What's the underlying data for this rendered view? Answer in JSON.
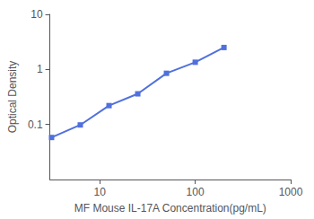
{
  "chart_data": {
    "type": "line",
    "xlabel": "MF Mouse IL-17A Concentration(pg/mL)",
    "ylabel": "Optical Density",
    "x": [
      3.125,
      6.25,
      12.5,
      25,
      50,
      100,
      200
    ],
    "values": [
      0.058,
      0.098,
      0.22,
      0.36,
      0.85,
      1.35,
      2.5
    ],
    "xlim": [
      3,
      1000
    ],
    "ylim": [
      0.01,
      10
    ],
    "xticks": [
      10,
      100,
      1000
    ],
    "yticks": [
      0.1,
      1,
      10
    ],
    "log": true,
    "grid": false,
    "marker": "square"
  }
}
